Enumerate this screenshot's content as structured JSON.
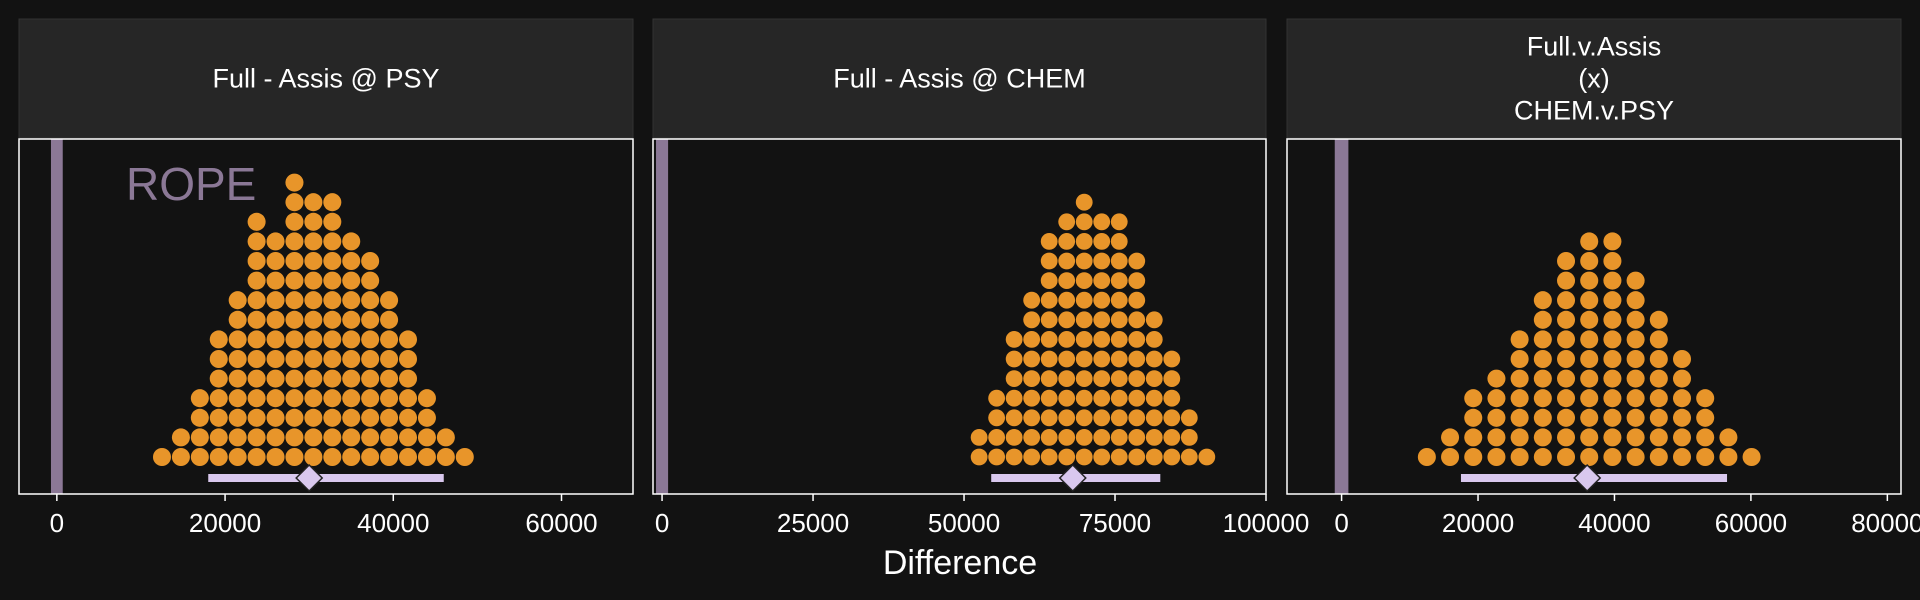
{
  "chart_data": {
    "type": "dotplot",
    "xlabel": "Difference",
    "rope_label": "ROPE",
    "colors": {
      "background": "#121212",
      "strip": "#262626",
      "panel_border": "#ffffff",
      "dots": "#e8952a",
      "rope": "#8b7896",
      "interval": "#d9c8ee",
      "point": "#d9c8ee"
    },
    "panels": [
      {
        "title_lines": [
          "Full - Assis @ PSY"
        ],
        "xlim": [
          -4500,
          68500
        ],
        "ticks": [
          0,
          20000,
          40000,
          60000
        ],
        "tick_labels": [
          "0",
          "20000",
          "40000",
          "60000"
        ],
        "rope": [
          -700,
          700
        ],
        "bin_width": 2250,
        "counts": [
          1,
          2,
          4,
          7,
          9,
          13,
          12,
          15,
          14,
          14,
          12,
          11,
          9,
          7,
          4,
          2,
          1
        ],
        "x_first": 12500,
        "interval": [
          18000,
          46000
        ],
        "point": 30000,
        "show_rope_label": true
      },
      {
        "title_lines": [
          "Full - Assis @ CHEM"
        ],
        "xlim": [
          -1500,
          100000
        ],
        "ticks": [
          0,
          25000,
          50000,
          75000,
          100000
        ],
        "tick_labels": [
          "0",
          "25000",
          "50000",
          "75000",
          "100000"
        ],
        "rope": [
          -1000,
          1000
        ],
        "bin_width": 2900,
        "counts": [
          2,
          4,
          7,
          9,
          12,
          13,
          14,
          13,
          13,
          11,
          8,
          6,
          3,
          1
        ],
        "x_first": 52500,
        "interval": [
          54500,
          82500
        ],
        "point": 68000,
        "show_rope_label": false
      },
      {
        "title_lines": [
          "Full.v.Assis",
          "(x)",
          "CHEM.v.PSY"
        ],
        "xlim": [
          -8000,
          82000
        ],
        "ticks": [
          0,
          20000,
          40000,
          60000,
          80000
        ],
        "tick_labels": [
          "0",
          "20000",
          "40000",
          "60000",
          "80000"
        ],
        "rope": [
          -1000,
          1000
        ],
        "bin_width": 3400,
        "counts": [
          1,
          2,
          4,
          5,
          7,
          9,
          11,
          12,
          12,
          10,
          8,
          6,
          4,
          2,
          1
        ],
        "x_first": 12500,
        "interval": [
          17500,
          56500
        ],
        "point": 36000,
        "show_rope_label": false
      }
    ]
  }
}
